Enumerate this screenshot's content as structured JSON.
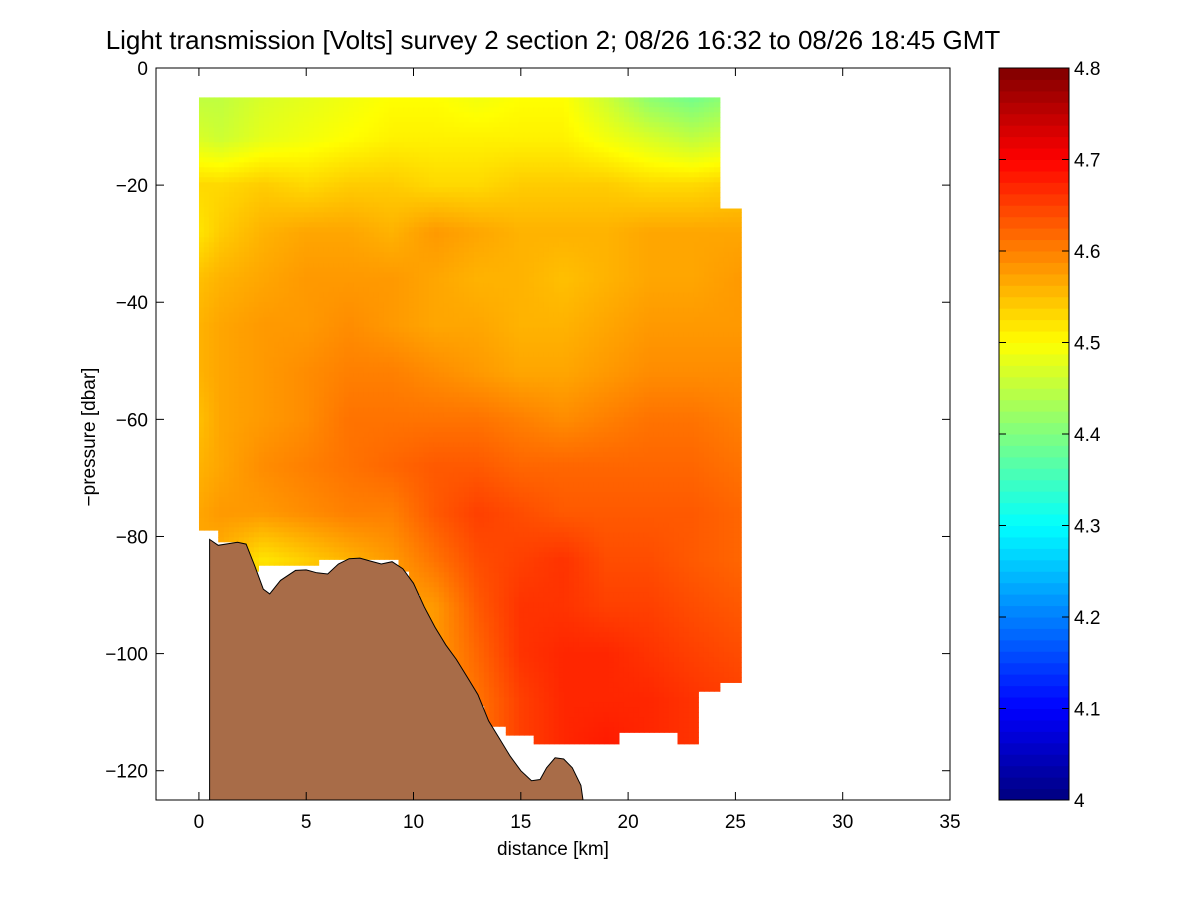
{
  "chart_data": {
    "type": "heatmap",
    "title": "Light transmission [Volts] survey 2 section 2; 08/26 16:32 to 08/26 18:45 GMT",
    "xlabel": "distance [km]",
    "ylabel": "−pressure [dbar]",
    "xlim": [
      -2,
      35
    ],
    "ylim": [
      -125,
      0
    ],
    "xticks": [
      0,
      5,
      10,
      15,
      20,
      25,
      30,
      35
    ],
    "yticks": [
      0,
      -20,
      -40,
      -60,
      -80,
      -100,
      -120
    ],
    "colorbar": {
      "colormap": "jet",
      "clim": [
        4.0,
        4.8
      ],
      "ticks": [
        "4",
        "4.1",
        "4.2",
        "4.3",
        "4.4",
        "4.5",
        "4.6",
        "4.7",
        "4.8"
      ]
    },
    "grid": false,
    "field": {
      "x_nodes": [
        0,
        1,
        3,
        5,
        7,
        9,
        11,
        13,
        15,
        17,
        19,
        21,
        23,
        25.3
      ],
      "y_nodes": [
        -5,
        -12,
        -20,
        -28,
        -36,
        -44,
        -52,
        -60,
        -68,
        -76,
        -84,
        -92,
        -100,
        -108,
        -116
      ],
      "values": [
        [
          4.45,
          4.45,
          4.47,
          4.48,
          4.49,
          4.5,
          4.5,
          4.49,
          4.5,
          4.5,
          4.46,
          4.41,
          4.39,
          4.42
        ],
        [
          4.47,
          4.46,
          4.48,
          4.49,
          4.5,
          4.51,
          4.51,
          4.51,
          4.51,
          4.51,
          4.49,
          4.47,
          4.45,
          4.47
        ],
        [
          4.53,
          4.53,
          4.54,
          4.53,
          4.54,
          4.54,
          4.53,
          4.53,
          4.54,
          4.54,
          4.54,
          4.53,
          4.53,
          4.54
        ],
        [
          4.52,
          4.54,
          4.56,
          4.57,
          4.57,
          4.56,
          4.58,
          4.57,
          4.56,
          4.56,
          4.56,
          4.57,
          4.57,
          4.57
        ],
        [
          4.55,
          4.56,
          4.57,
          4.58,
          4.58,
          4.58,
          4.57,
          4.56,
          4.56,
          4.55,
          4.56,
          4.57,
          4.57,
          4.58
        ],
        [
          4.56,
          4.57,
          4.58,
          4.58,
          4.59,
          4.58,
          4.57,
          4.57,
          4.56,
          4.56,
          4.57,
          4.58,
          4.58,
          4.58
        ],
        [
          4.56,
          4.57,
          4.58,
          4.59,
          4.6,
          4.6,
          4.59,
          4.58,
          4.57,
          4.57,
          4.58,
          4.59,
          4.59,
          4.59
        ],
        [
          4.55,
          4.57,
          4.58,
          4.59,
          4.61,
          4.61,
          4.61,
          4.61,
          4.6,
          4.59,
          4.6,
          4.61,
          4.61,
          4.6
        ],
        [
          4.56,
          4.57,
          4.59,
          4.6,
          4.61,
          4.62,
          4.63,
          4.63,
          4.62,
          4.62,
          4.62,
          4.62,
          4.62,
          4.61
        ],
        [
          4.57,
          4.58,
          4.58,
          4.59,
          4.6,
          4.6,
          4.63,
          4.65,
          4.64,
          4.63,
          4.63,
          4.63,
          4.63,
          4.62
        ],
        [
          4.57,
          4.56,
          4.52,
          4.54,
          4.56,
          4.58,
          4.61,
          4.64,
          4.65,
          4.66,
          4.64,
          4.64,
          4.63,
          4.62
        ],
        [
          4.57,
          4.56,
          4.55,
          4.56,
          4.57,
          4.57,
          4.58,
          4.63,
          4.66,
          4.66,
          4.65,
          4.65,
          4.64,
          4.63
        ],
        [
          4.57,
          4.57,
          4.57,
          4.57,
          4.57,
          4.57,
          4.58,
          4.62,
          4.66,
          4.67,
          4.67,
          4.66,
          4.65,
          4.64
        ],
        [
          4.57,
          4.57,
          4.57,
          4.57,
          4.57,
          4.57,
          4.58,
          4.61,
          4.65,
          4.67,
          4.67,
          4.67,
          4.66,
          4.65
        ],
        [
          4.57,
          4.57,
          4.57,
          4.57,
          4.57,
          4.57,
          4.58,
          4.61,
          4.65,
          4.67,
          4.68,
          4.67,
          4.66,
          4.65
        ]
      ]
    },
    "data_boundary": [
      [
        0,
        -5
      ],
      [
        24.3,
        -5
      ],
      [
        24.3,
        -24
      ],
      [
        25.3,
        -24
      ],
      [
        25.3,
        -105
      ],
      [
        24.3,
        -105
      ],
      [
        24.3,
        -106.5
      ],
      [
        23.3,
        -106.5
      ],
      [
        23.3,
        -115.5
      ],
      [
        22.3,
        -115.5
      ],
      [
        22.3,
        -113.5
      ],
      [
        19.6,
        -113.5
      ],
      [
        19.6,
        -115.5
      ],
      [
        15.6,
        -115.5
      ],
      [
        15.6,
        -114
      ],
      [
        14.3,
        -114
      ],
      [
        14.3,
        -112.5
      ],
      [
        13.3,
        -112.5
      ],
      [
        13.3,
        -109
      ],
      [
        12.8,
        -109
      ],
      [
        12.8,
        -106
      ],
      [
        12.3,
        -106
      ],
      [
        12.3,
        -104
      ],
      [
        11.8,
        -104
      ],
      [
        11.8,
        -101
      ],
      [
        11.3,
        -101
      ],
      [
        11.3,
        -98
      ],
      [
        10.8,
        -98
      ],
      [
        10.8,
        -94
      ],
      [
        10.3,
        -94
      ],
      [
        10.3,
        -90
      ],
      [
        9.8,
        -90
      ],
      [
        9.8,
        -86
      ],
      [
        9.3,
        -86
      ],
      [
        9.3,
        -84
      ],
      [
        5.6,
        -84
      ],
      [
        5.6,
        -85
      ],
      [
        2.8,
        -85
      ],
      [
        2.8,
        -86
      ],
      [
        1.8,
        -86
      ],
      [
        1.8,
        -81
      ],
      [
        0.9,
        -81
      ],
      [
        0.9,
        -79
      ],
      [
        0,
        -79
      ]
    ],
    "seafloor": [
      [
        0.5,
        -125
      ],
      [
        0.5,
        -80.5
      ],
      [
        0.9,
        -81.5
      ],
      [
        1.8,
        -81
      ],
      [
        2.2,
        -81.3
      ],
      [
        2.6,
        -85
      ],
      [
        3.0,
        -89
      ],
      [
        3.3,
        -89.8
      ],
      [
        3.8,
        -87.5
      ],
      [
        4.5,
        -85.8
      ],
      [
        5.0,
        -85.7
      ],
      [
        5.5,
        -86.2
      ],
      [
        6.0,
        -86.4
      ],
      [
        6.5,
        -84.7
      ],
      [
        7.0,
        -83.8
      ],
      [
        7.5,
        -83.7
      ],
      [
        8.0,
        -84.2
      ],
      [
        8.5,
        -84.7
      ],
      [
        9.0,
        -84.3
      ],
      [
        9.5,
        -85.5
      ],
      [
        10.0,
        -88
      ],
      [
        10.5,
        -92
      ],
      [
        11.0,
        -95.5
      ],
      [
        11.5,
        -98.5
      ],
      [
        12.0,
        -101
      ],
      [
        12.5,
        -104
      ],
      [
        13.0,
        -107
      ],
      [
        13.5,
        -111.5
      ],
      [
        14.0,
        -114.5
      ],
      [
        14.5,
        -117.5
      ],
      [
        15.0,
        -120
      ],
      [
        15.5,
        -121.7
      ],
      [
        15.9,
        -121.5
      ],
      [
        16.2,
        -119.5
      ],
      [
        16.6,
        -117.8
      ],
      [
        17.0,
        -118
      ],
      [
        17.4,
        -119.5
      ],
      [
        17.8,
        -122.5
      ],
      [
        17.9,
        -125
      ]
    ],
    "seafloor_color": "#a86c48"
  }
}
